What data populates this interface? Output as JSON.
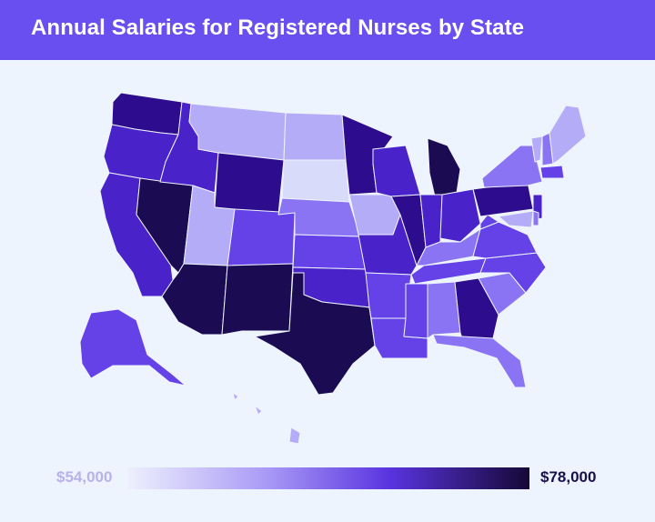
{
  "header": {
    "title": "Annual Salaries for Registered Nurses by State"
  },
  "legend": {
    "min_label": "$54,000",
    "max_label": "$78,000",
    "colors": [
      "#d8dbfa",
      "#b5acf7",
      "#8a74f3",
      "#6442e8",
      "#4a22c9",
      "#2d0c8d",
      "#1b0b52"
    ]
  },
  "map": {
    "type": "choropleth",
    "region": "United States",
    "levels": {
      "WA": 5,
      "OR": 4,
      "CA": 4,
      "NV": 6,
      "ID": 4,
      "MT": 1,
      "WY": 5,
      "UT": 1,
      "AZ": 6,
      "CO": 3,
      "NM": 6,
      "ND": 1,
      "SD": 0,
      "NE": 2,
      "KS": 3,
      "OK": 4,
      "TX": 6,
      "MN": 5,
      "IA": 1,
      "MO": 4,
      "AR": 3,
      "LA": 3,
      "WI": 4,
      "IL": 5,
      "MI": 6,
      "IN": 4,
      "OH": 4,
      "KY": 2,
      "TN": 3,
      "MS": 3,
      "AL": 2,
      "GA": 5,
      "FL": 2,
      "SC": 2,
      "NC": 3,
      "VA": 3,
      "WV": 3,
      "PA": 5,
      "NY": 2,
      "ME": 1,
      "VT": 1,
      "NH": 2,
      "MA": 3,
      "NJ": 4,
      "MD": 1,
      "DE": 2,
      "AK": 3,
      "HI": 1
    }
  }
}
